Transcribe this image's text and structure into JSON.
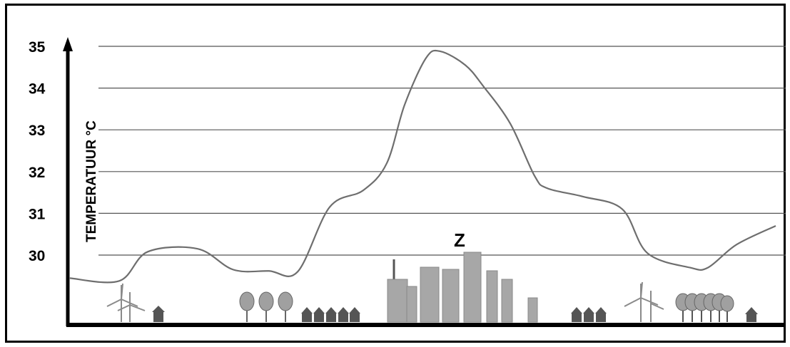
{
  "chart_data": {
    "type": "line",
    "ylabel": "TEMPERATUUR °C",
    "yticks": [
      "30",
      "31",
      "32",
      "33",
      "34",
      "35"
    ],
    "ylim": [
      29,
      35.2
    ],
    "annotation": "Z",
    "grid": true,
    "series": [
      {
        "values": [
          [
            0,
            29.45
          ],
          [
            70,
            29.38
          ],
          [
            110,
            30.08
          ],
          [
            180,
            30.15
          ],
          [
            230,
            29.65
          ],
          [
            280,
            29.62
          ],
          [
            320,
            29.6
          ],
          [
            365,
            31.15
          ],
          [
            412,
            31.55
          ],
          [
            445,
            32.2
          ],
          [
            470,
            33.6
          ],
          [
            500,
            34.72
          ],
          [
            520,
            34.88
          ],
          [
            555,
            34.55
          ],
          [
            580,
            34.05
          ],
          [
            618,
            33.15
          ],
          [
            652,
            31.9
          ],
          [
            670,
            31.6
          ],
          [
            720,
            31.4
          ],
          [
            775,
            31.1
          ],
          [
            810,
            30.05
          ],
          [
            870,
            29.7
          ],
          [
            895,
            29.7
          ],
          [
            935,
            30.25
          ],
          [
            990,
            30.7
          ]
        ]
      }
    ],
    "colors": {
      "line": "#6e6e6e",
      "grid": "#555555",
      "axis": "#000000",
      "buildings": "#a7a7a7"
    }
  }
}
